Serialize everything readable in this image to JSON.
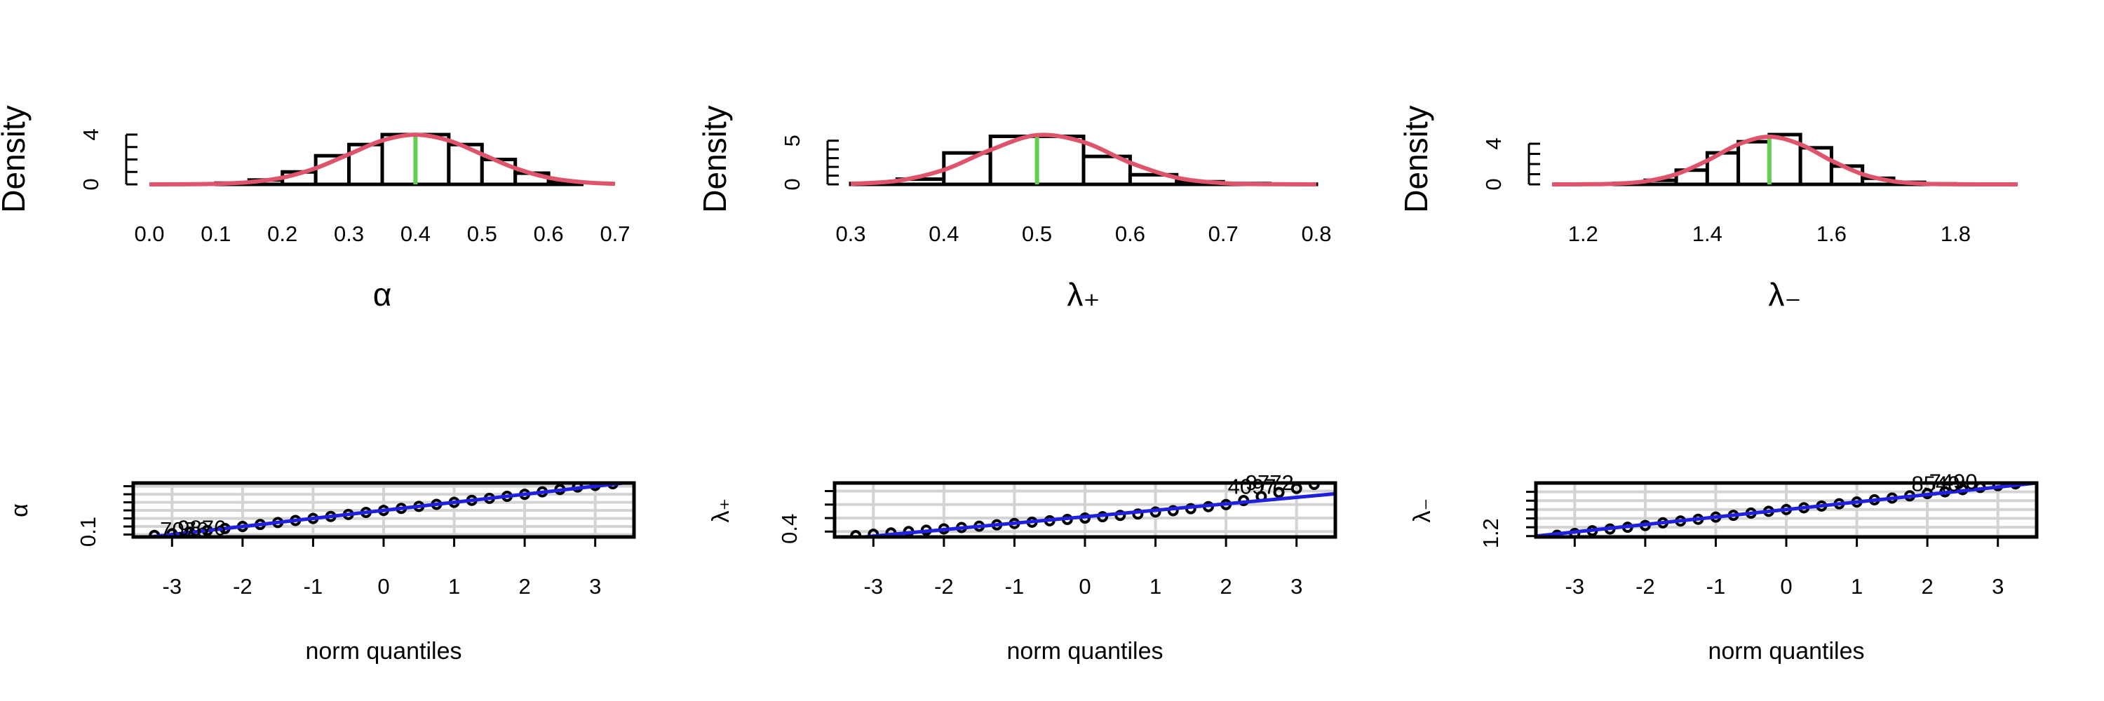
{
  "chart_data": [
    {
      "type": "histogram",
      "ylabel": "Density",
      "xlabel": "α",
      "bins": [
        0.1,
        0.15,
        0.2,
        0.25,
        0.3,
        0.35,
        0.4,
        0.45,
        0.5,
        0.55,
        0.6,
        0.65
      ],
      "values": [
        0.1,
        0.35,
        1.0,
        2.3,
        3.2,
        4.0,
        4.0,
        3.2,
        2.0,
        0.9,
        0.2
      ],
      "curve": {
        "x": [
          0,
          0.05,
          0.1,
          0.15,
          0.2,
          0.25,
          0.3,
          0.35,
          0.4,
          0.45,
          0.5,
          0.55,
          0.6,
          0.65,
          0.7
        ],
        "y": [
          0,
          0.01,
          0.04,
          0.18,
          0.54,
          1.3,
          2.42,
          3.52,
          3.99,
          3.52,
          2.42,
          1.3,
          0.54,
          0.18,
          0.04
        ]
      },
      "true_value": 0.4,
      "xlim": [
        0,
        0.7
      ],
      "ylim": [
        0,
        4
      ],
      "xticks": [
        {
          "value": 0,
          "label": "0.0"
        },
        0.1,
        0.2,
        0.3,
        0.4,
        0.5,
        0.6,
        0.7
      ],
      "yticks": [
        0,
        4
      ],
      "yticks_unlabeled": [
        1,
        2,
        3
      ],
      "edge_color": "#000000",
      "curve_color": "#DF536B",
      "true_color": "#61D04F"
    },
    {
      "type": "histogram",
      "ylabel": "Density",
      "xlabel": "λ₊",
      "bins": [
        0.3,
        0.35,
        0.4,
        0.45,
        0.5,
        0.55,
        0.6,
        0.65,
        0.7,
        0.75,
        0.8
      ],
      "values": [
        0.1,
        0.6,
        3.6,
        5.5,
        5.5,
        3.2,
        1.1,
        0.3,
        0.1,
        0.02
      ],
      "curve": {
        "x": [
          0.3,
          0.35,
          0.4,
          0.45,
          0.5,
          0.55,
          0.6,
          0.65,
          0.7,
          0.75,
          0.8
        ],
        "y": [
          0.06,
          0.41,
          1.66,
          3.94,
          5.64,
          4.84,
          2.48,
          0.77,
          0.14,
          0.02,
          0
        ]
      },
      "true_value": 0.5,
      "xlim": [
        0.3,
        0.8
      ],
      "ylim": [
        0,
        5.7
      ],
      "xticks": [
        0.3,
        0.4,
        0.5,
        0.6,
        0.7,
        0.8
      ],
      "yticks": [
        0,
        5
      ],
      "yticks_unlabeled": [
        1,
        2,
        3,
        4
      ],
      "edge_color": "#000000",
      "curve_color": "#DF536B",
      "true_color": "#61D04F"
    },
    {
      "type": "histogram",
      "ylabel": "Density",
      "xlabel": "λ₋",
      "bins": [
        1.25,
        1.3,
        1.35,
        1.4,
        1.45,
        1.5,
        1.55,
        1.6,
        1.65,
        1.7,
        1.75,
        1.8
      ],
      "values": [
        0.1,
        0.4,
        1.4,
        3.1,
        4.2,
        4.9,
        3.6,
        1.8,
        0.6,
        0.2,
        0.05
      ],
      "curve": {
        "x": [
          1.15,
          1.2,
          1.25,
          1.3,
          1.35,
          1.4,
          1.45,
          1.5,
          1.55,
          1.6,
          1.65,
          1.7,
          1.75,
          1.8,
          1.85,
          1.9
        ],
        "y": [
          0,
          0.01,
          0.06,
          0.3,
          1.0,
          2.34,
          3.94,
          4.69,
          3.94,
          2.34,
          1.0,
          0.3,
          0.06,
          0.01,
          0,
          0
        ]
      },
      "true_value": 1.5,
      "xlim": [
        1.15,
        1.9
      ],
      "ylim": [
        0,
        4.9
      ],
      "xticks": [
        1.2,
        1.4,
        1.6,
        1.8
      ],
      "yticks": [
        0,
        4
      ],
      "yticks_unlabeled": [
        1,
        2,
        3
      ],
      "edge_color": "#000000",
      "curve_color": "#DF536B",
      "true_color": "#61D04F"
    },
    {
      "type": "qq",
      "ylabel": "α",
      "xlabel": "norm quantiles",
      "x": [
        -3.25,
        -3,
        -2.75,
        -2.5,
        -2.25,
        -2,
        -1.75,
        -1.5,
        -1.25,
        -1,
        -0.75,
        -0.5,
        -0.25,
        0,
        0.25,
        0.5,
        0.75,
        1,
        1.25,
        1.5,
        1.75,
        2,
        2.25,
        2.5,
        2.75,
        3,
        3.25
      ],
      "y": [
        0.09,
        0.11,
        0.13,
        0.15,
        0.175,
        0.2,
        0.225,
        0.25,
        0.275,
        0.3,
        0.325,
        0.35,
        0.375,
        0.4,
        0.425,
        0.45,
        0.475,
        0.5,
        0.525,
        0.55,
        0.575,
        0.6,
        0.63,
        0.66,
        0.69,
        0.71,
        0.73
      ],
      "ref_line": {
        "x": [
          -3.55,
          3.55
        ],
        "y": [
          0.045,
          0.755
        ]
      },
      "point_labels": [
        {
          "x": -3.25,
          "y": 0.09,
          "label": "7076"
        },
        {
          "x": -3,
          "y": 0.11,
          "label": "9876"
        }
      ],
      "xlim": [
        -3.55,
        3.55
      ],
      "ylim": [
        0.07,
        0.74
      ],
      "xticks": [
        -3,
        -2,
        -1,
        0,
        1,
        2,
        3
      ],
      "yticks": [
        0.1
      ],
      "yticks_unlabeled": [
        0.2,
        0.3,
        0.4,
        0.5,
        0.6,
        0.7
      ],
      "grid": true,
      "grid_color": "#D3D3D3",
      "point_color": "#000000",
      "line_color": "#2020E0"
    },
    {
      "type": "qq",
      "ylabel": "λ₊",
      "xlabel": "norm quantiles",
      "x": [
        -3.25,
        -3,
        -2.75,
        -2.5,
        -2.25,
        -2,
        -1.75,
        -1.5,
        -1.25,
        -1,
        -0.75,
        -0.5,
        -0.25,
        0,
        0.25,
        0.5,
        0.75,
        1,
        1.25,
        1.5,
        1.75,
        2,
        2.25,
        2.5,
        2.75,
        3,
        3.25
      ],
      "y": [
        0.37,
        0.38,
        0.39,
        0.4,
        0.41,
        0.42,
        0.43,
        0.44,
        0.45,
        0.46,
        0.47,
        0.48,
        0.49,
        0.5,
        0.51,
        0.52,
        0.53,
        0.545,
        0.555,
        0.57,
        0.585,
        0.6,
        0.63,
        0.66,
        0.69,
        0.72,
        0.75
      ],
      "ref_line": {
        "x": [
          -3.55,
          3.55
        ],
        "y": [
          0.34,
          0.68
        ]
      },
      "point_labels": [
        {
          "x": 2.75,
          "y": 0.69,
          "label": "4097"
        },
        {
          "x": 3,
          "y": 0.72,
          "label": "9772"
        }
      ],
      "xlim": [
        -3.55,
        3.55
      ],
      "ylim": [
        0.36,
        0.76
      ],
      "xticks": [
        -3,
        -2,
        -1,
        0,
        1,
        2,
        3
      ],
      "yticks": [
        0.4
      ],
      "yticks_unlabeled": [
        0.5,
        0.6,
        0.7
      ],
      "grid": true,
      "grid_color": "#D3D3D3",
      "point_color": "#000000",
      "line_color": "#2020E0"
    },
    {
      "type": "qq",
      "ylabel": "λ₋",
      "xlabel": "norm quantiles",
      "x": [
        -3.25,
        -3,
        -2.75,
        -2.5,
        -2.25,
        -2,
        -1.75,
        -1.5,
        -1.25,
        -1,
        -0.75,
        -0.5,
        -0.25,
        0,
        0.25,
        0.5,
        0.75,
        1,
        1.25,
        1.5,
        1.75,
        2,
        2.25,
        2.5,
        2.75,
        3,
        3.25
      ],
      "y": [
        1.21,
        1.23,
        1.26,
        1.28,
        1.3,
        1.32,
        1.35,
        1.37,
        1.39,
        1.415,
        1.435,
        1.46,
        1.48,
        1.5,
        1.52,
        1.54,
        1.565,
        1.585,
        1.61,
        1.63,
        1.655,
        1.68,
        1.7,
        1.725,
        1.75,
        1.77,
        1.79
      ],
      "ref_line": {
        "x": [
          -3.55,
          3.55
        ],
        "y": [
          1.2,
          1.8
        ]
      },
      "point_labels": [
        {
          "x": 2.5,
          "y": 1.725,
          "label": "8540"
        },
        {
          "x": 2.75,
          "y": 1.75,
          "label": "7490"
        }
      ],
      "xlim": [
        -3.55,
        3.55
      ],
      "ylim": [
        1.19,
        1.8
      ],
      "xticks": [
        -3,
        -2,
        -1,
        0,
        1,
        2,
        3
      ],
      "yticks": [
        1.2
      ],
      "yticks_unlabeled": [
        1.3,
        1.4,
        1.5,
        1.6,
        1.7
      ],
      "grid": true,
      "grid_color": "#D3D3D3",
      "point_color": "#000000",
      "line_color": "#2020E0"
    }
  ]
}
